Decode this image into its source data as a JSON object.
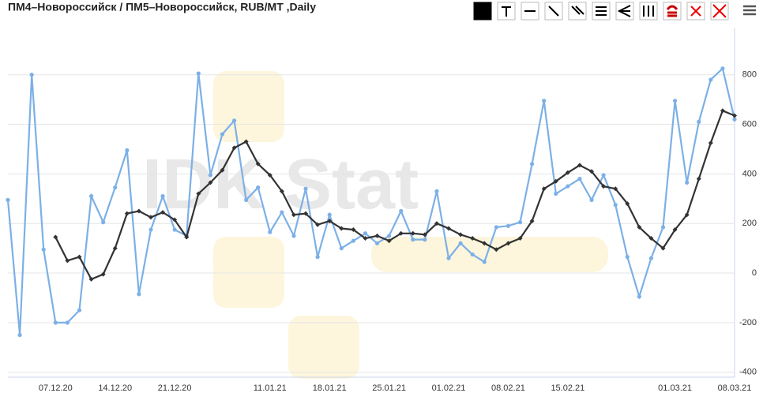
{
  "chart_data": {
    "type": "line",
    "title": "ПМ4–Новороссийск / ПМ5–Новороссийск, RUB/MT ,Daily",
    "watermark": "IDK Stat",
    "categories": [
      null,
      null,
      null,
      null,
      "07.12.20",
      null,
      null,
      null,
      null,
      "14.12.20",
      null,
      null,
      null,
      null,
      "21.12.20",
      null,
      null,
      null,
      null,
      null,
      null,
      null,
      "11.01.21",
      null,
      null,
      null,
      null,
      "18.01.21",
      null,
      null,
      null,
      null,
      "25.01.21",
      null,
      null,
      null,
      null,
      "01.02.21",
      null,
      null,
      null,
      null,
      "08.02.21",
      null,
      null,
      null,
      null,
      "15.02.21",
      null,
      null,
      null,
      null,
      null,
      null,
      null,
      null,
      "01.03.21",
      null,
      null,
      null,
      null,
      "08.03.21"
    ],
    "series": [
      {
        "color": "#7cb0e6",
        "values": [
          295,
          -250,
          800,
          95,
          -200,
          -200,
          -150,
          310,
          205,
          345,
          495,
          -85,
          175,
          310,
          175,
          150,
          805,
          395,
          560,
          615,
          295,
          345,
          165,
          245,
          150,
          340,
          65,
          235,
          100,
          130,
          160,
          120,
          150,
          250,
          135,
          135,
          330,
          60,
          120,
          75,
          45,
          185,
          190,
          205,
          440,
          695,
          320,
          350,
          380,
          295,
          395,
          275,
          65,
          -95,
          60,
          185,
          695,
          365,
          610,
          780,
          825,
          620
        ]
      },
      {
        "color": "#333333",
        "values": [
          null,
          null,
          null,
          null,
          145,
          50,
          65,
          -25,
          -5,
          100,
          240,
          250,
          225,
          245,
          215,
          145,
          320,
          365,
          415,
          505,
          530,
          440,
          395,
          330,
          235,
          240,
          195,
          210,
          180,
          175,
          140,
          150,
          130,
          160,
          160,
          155,
          200,
          180,
          155,
          140,
          120,
          95,
          120,
          140,
          210,
          340,
          370,
          405,
          435,
          410,
          350,
          340,
          280,
          185,
          140,
          100,
          175,
          235,
          380,
          525,
          655,
          635
        ]
      }
    ],
    "ylim": [
      -420,
      990
    ],
    "yticks": [
      -400,
      -200,
      0,
      200,
      400,
      600,
      800
    ],
    "grid": true
  }
}
